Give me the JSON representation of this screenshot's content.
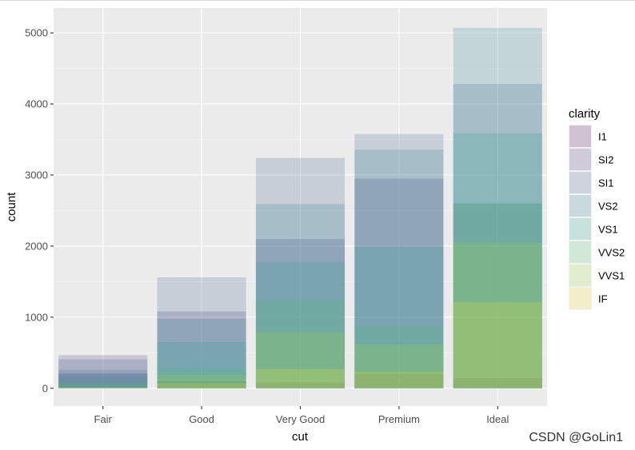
{
  "chart_data": {
    "type": "bar",
    "position": "identity",
    "xlabel": "cut",
    "ylabel": "count",
    "categories": [
      "Fair",
      "Good",
      "Very Good",
      "Premium",
      "Ideal"
    ],
    "yticks": [
      0,
      1000,
      2000,
      3000,
      4000,
      5000
    ],
    "ylim": [
      -250,
      5350
    ],
    "legend_title": "clarity",
    "legend_position": "right",
    "grid": true,
    "series": [
      {
        "name": "I1",
        "color": "#440154",
        "values": [
          210,
          96,
          84,
          205,
          146
        ]
      },
      {
        "name": "SI2",
        "color": "#46337E",
        "values": [
          466,
          1081,
          2100,
          2949,
          2598
        ]
      },
      {
        "name": "SI1",
        "color": "#365C8D",
        "values": [
          408,
          1560,
          3240,
          3575,
          4282
        ]
      },
      {
        "name": "VS2",
        "color": "#277F8E",
        "values": [
          261,
          978,
          2591,
          3357,
          5071
        ]
      },
      {
        "name": "VS1",
        "color": "#1FA187",
        "values": [
          170,
          648,
          1775,
          1989,
          3589
        ]
      },
      {
        "name": "VVS2",
        "color": "#4AC16D",
        "values": [
          69,
          286,
          1235,
          870,
          2606
        ]
      },
      {
        "name": "VVS1",
        "color": "#A0DA39",
        "values": [
          17,
          186,
          789,
          616,
          2047
        ]
      },
      {
        "name": "IF",
        "color": "#FDE725",
        "values": [
          9,
          71,
          268,
          230,
          1212
        ]
      }
    ],
    "bar_opacity": 0.2
  },
  "watermark": "CSDN @GoLin1"
}
